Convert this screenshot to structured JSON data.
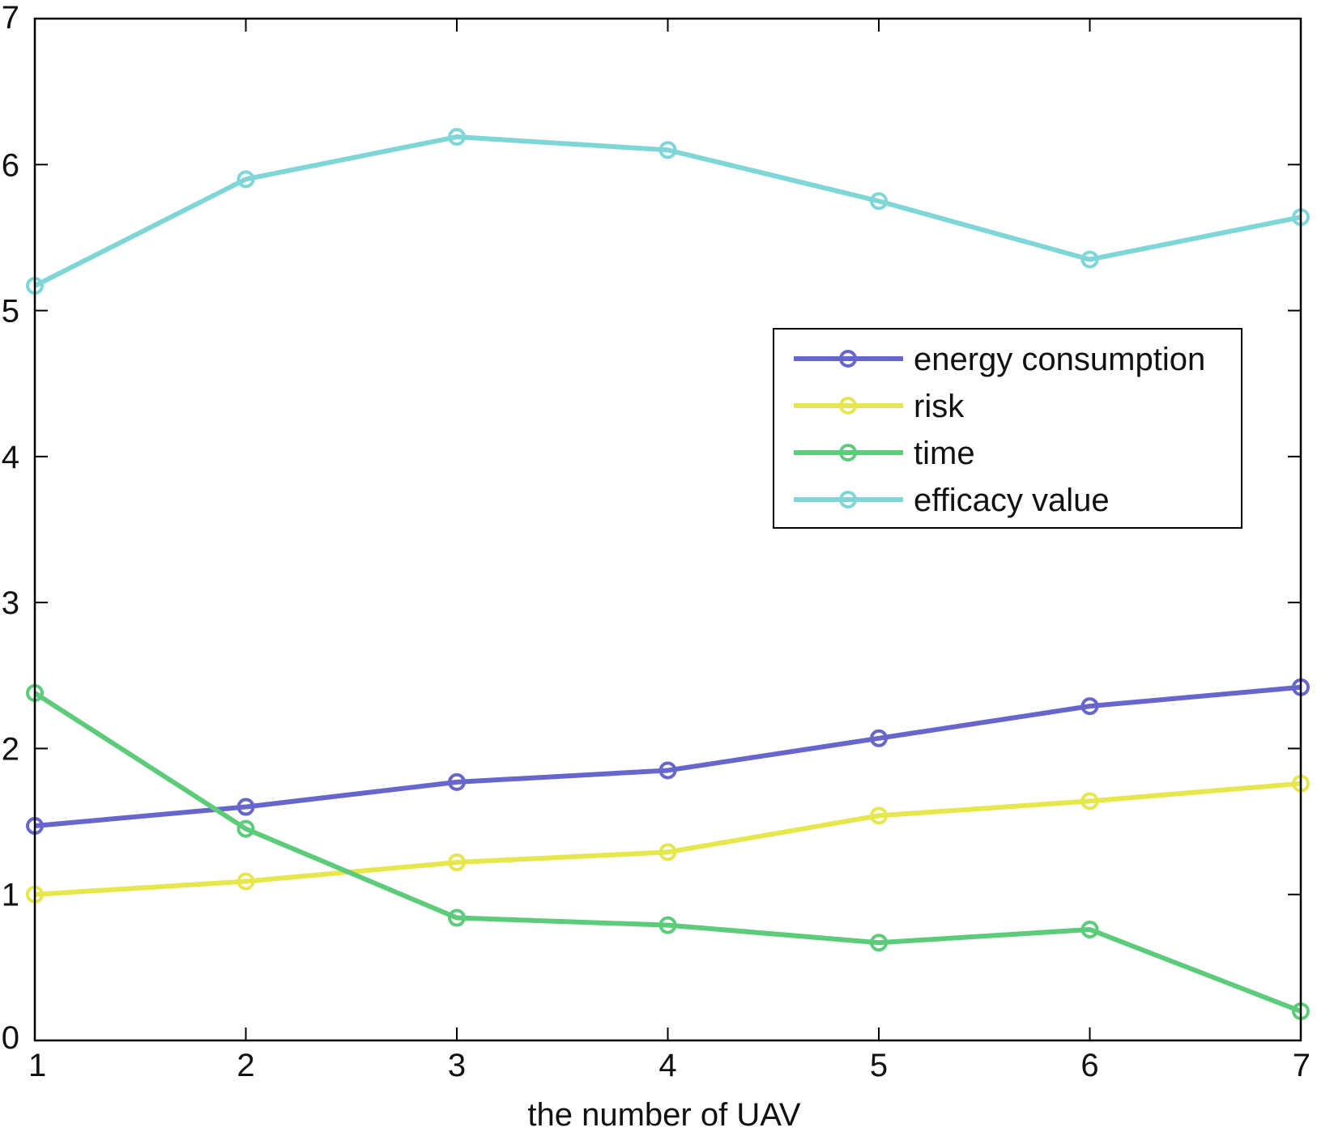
{
  "chart_data": {
    "type": "line",
    "title": "",
    "xlabel": "the number of UAV",
    "ylabel": "",
    "x": [
      1,
      2,
      3,
      4,
      5,
      6,
      7
    ],
    "xlim": [
      1,
      7
    ],
    "ylim": [
      0,
      7
    ],
    "xticks": [
      1,
      2,
      3,
      4,
      5,
      6,
      7
    ],
    "yticks": [
      0,
      1,
      2,
      3,
      4,
      5,
      6,
      7
    ],
    "grid": false,
    "legend_position": "center-right",
    "marker": "circle",
    "series": [
      {
        "name": "energy consumption",
        "color": "#6666cc",
        "values": [
          1.47,
          1.6,
          1.77,
          1.85,
          2.07,
          2.29,
          2.42
        ]
      },
      {
        "name": "risk",
        "color": "#e6e64d",
        "values": [
          1.0,
          1.09,
          1.22,
          1.29,
          1.54,
          1.64,
          1.76
        ]
      },
      {
        "name": "time",
        "color": "#5ccc7a",
        "values": [
          2.38,
          1.45,
          0.84,
          0.79,
          0.67,
          0.76,
          0.2
        ]
      },
      {
        "name": "efficacy value",
        "color": "#7fd6d6",
        "values": [
          5.17,
          5.9,
          6.19,
          6.1,
          5.75,
          5.35,
          5.64
        ]
      }
    ]
  }
}
